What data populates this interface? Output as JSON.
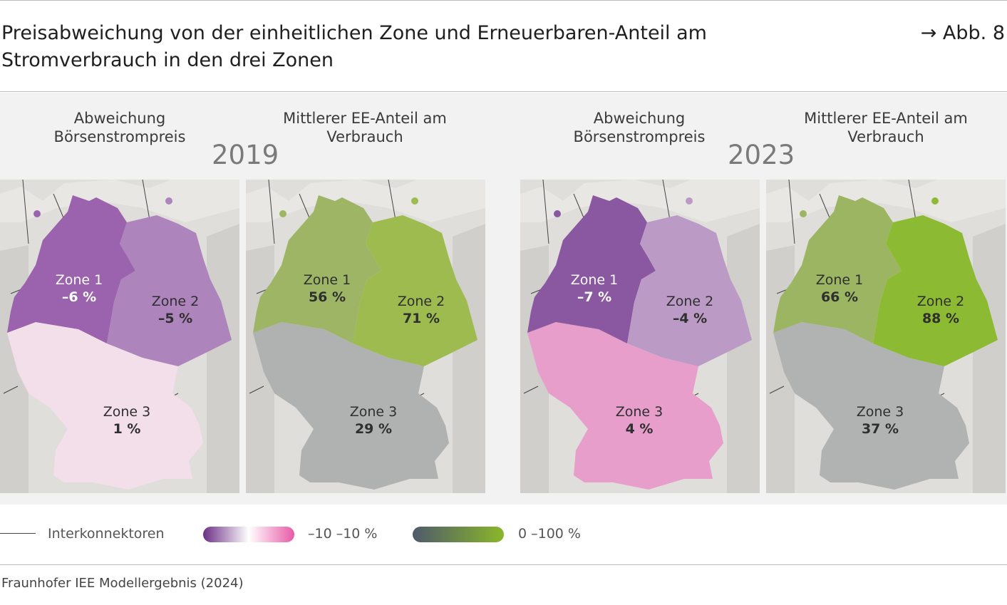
{
  "header": {
    "title": "Preisabweichung von der einheitlichen Zone und Erneuerbaren-Anteil am Stromverbrauch in den drei Zonen",
    "figure_ref": "→ Abb. 8"
  },
  "years": [
    {
      "year": "2019",
      "col_price": "Abweichung Börsenstrompreis",
      "col_ee": "Mittlerer EE-Anteil am Verbrauch",
      "price": {
        "zone1": {
          "name": "Zone 1",
          "value": "–6 %",
          "pct": -6,
          "color": "#9b63ad"
        },
        "zone2": {
          "name": "Zone 2",
          "value": "–5 %",
          "pct": -5,
          "color": "#ad84bc"
        },
        "zone3": {
          "name": "Zone 3",
          "value": "1 %",
          "pct": 1,
          "color": "#f3dfe9"
        }
      },
      "ee": {
        "zone1": {
          "name": "Zone 1",
          "value": "56 %",
          "pct": 56,
          "color": "#9db565"
        },
        "zone2": {
          "name": "Zone 2",
          "value": "71 %",
          "pct": 71,
          "color": "#9dbb4f"
        },
        "zone3": {
          "name": "Zone 3",
          "value": "29 %",
          "pct": 29,
          "color": "#b0b1b1"
        }
      }
    },
    {
      "year": "2023",
      "col_price": "Abweichung Börsenstrompreis",
      "col_ee": "Mittlerer EE-Anteil am Verbrauch",
      "price": {
        "zone1": {
          "name": "Zone 1",
          "value": "–7 %",
          "pct": -7,
          "color": "#8a57a1"
        },
        "zone2": {
          "name": "Zone 2",
          "value": "–4 %",
          "pct": -4,
          "color": "#bb9bc5"
        },
        "zone3": {
          "name": "Zone 3",
          "value": "4 %",
          "pct": 4,
          "color": "#e79ecb"
        }
      },
      "ee": {
        "zone1": {
          "name": "Zone 1",
          "value": "66 %",
          "pct": 66,
          "color": "#9cb562"
        },
        "zone2": {
          "name": "Zone 2",
          "value": "88 %",
          "pct": 88,
          "color": "#8dba33"
        },
        "zone3": {
          "name": "Zone 3",
          "value": "37 %",
          "pct": 37,
          "color": "#b1b2b2"
        }
      }
    }
  ],
  "legend": {
    "interconnectors": "Interkonnektoren",
    "price_range": "–10 –10 %",
    "ee_range": "0 –100 %",
    "price_gradient": [
      "#6c2f86",
      "#ffffff",
      "#e85aa6"
    ],
    "ee_gradient": [
      "#4f5a6b",
      "#8ab72a"
    ]
  },
  "source": "Fraunhofer IEE Modellergebnis (2024)"
}
